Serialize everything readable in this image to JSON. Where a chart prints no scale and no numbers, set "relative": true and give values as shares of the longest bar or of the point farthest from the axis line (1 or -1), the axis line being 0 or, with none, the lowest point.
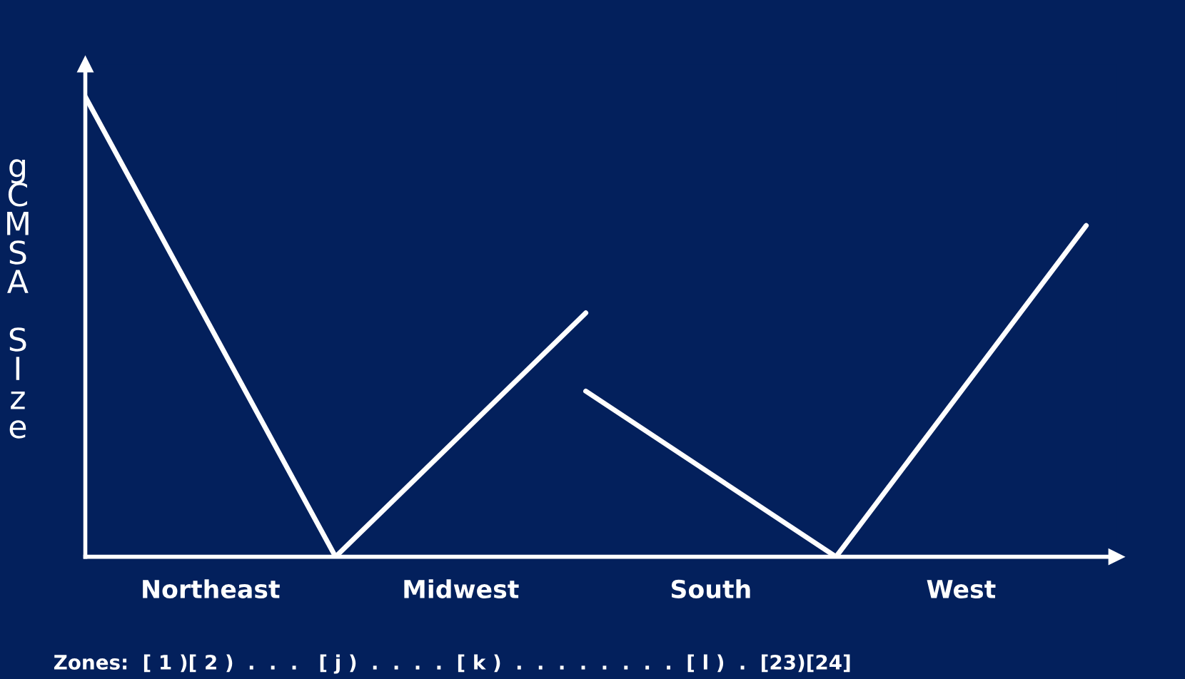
{
  "chart_data": {
    "type": "line",
    "relative": true,
    "ylabel": "gCMSA SIze",
    "categories": [
      null,
      null,
      null,
      null,
      null
    ],
    "series": [
      {
        "color": "#ffffff",
        "values": [
          1,
          0,
          0.53,
          null,
          null
        ]
      },
      {
        "color": "#ffffff",
        "values": [
          null,
          null,
          0.36,
          0,
          0.72
        ]
      }
    ],
    "annotations": [
      "Northeast",
      "Midwest",
      "South",
      "West",
      "Zones:  [ 1 )[ 2 )  .  .  .   [ j )  .  .  .  .  [ k )  .  .  .  .  .  .  .  .  [ l )  .  [23)[24]"
    ],
    "grid": false,
    "legend": false,
    "marker": "none",
    "line_style": "solid"
  }
}
